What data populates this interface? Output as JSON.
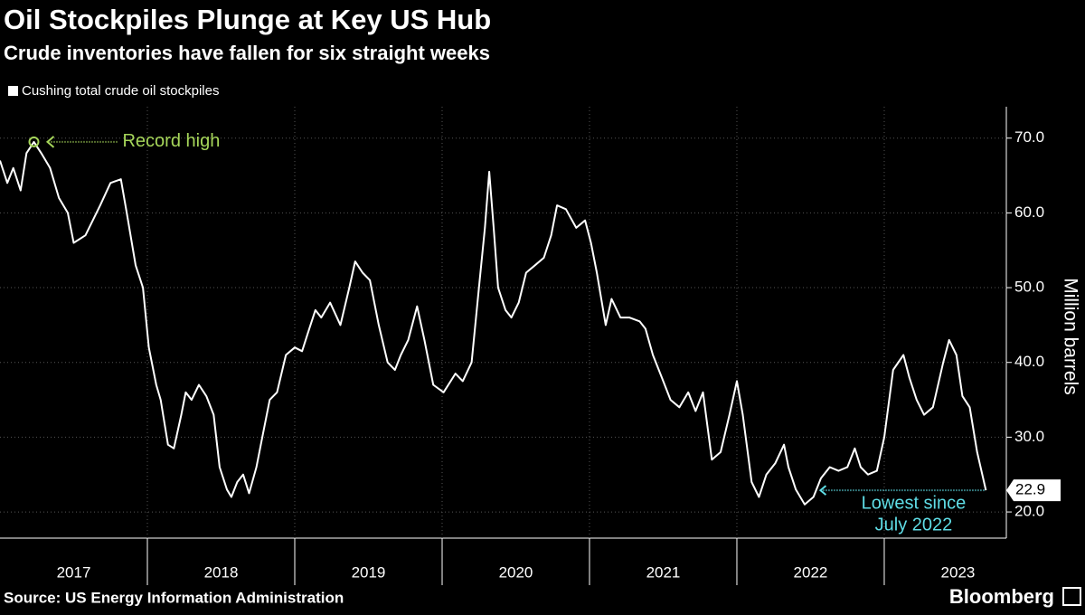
{
  "chart_data": {
    "type": "line",
    "title": "Oil Stockpiles Plunge at Key US Hub",
    "subtitle": "Crude inventories have fallen for six straight weeks",
    "y_label": "Million barrels",
    "source": "Source: US Energy Information Administration",
    "brand": "Bloomberg",
    "x": [
      2017.0,
      2017.05,
      2017.09,
      2017.14,
      2017.18,
      2017.23,
      2017.28,
      2017.34,
      2017.4,
      2017.46,
      2017.5,
      2017.58,
      2017.68,
      2017.75,
      2017.82,
      2017.86,
      2017.92,
      2017.97,
      2018.01,
      2018.06,
      2018.09,
      2018.14,
      2018.18,
      2018.23,
      2018.26,
      2018.3,
      2018.35,
      2018.4,
      2018.45,
      2018.49,
      2018.54,
      2018.57,
      2018.61,
      2018.65,
      2018.69,
      2018.74,
      2018.78,
      2018.83,
      2018.88,
      2018.94,
      2019.0,
      2019.05,
      2019.09,
      2019.14,
      2019.18,
      2019.24,
      2019.31,
      2019.37,
      2019.41,
      2019.46,
      2019.51,
      2019.57,
      2019.63,
      2019.68,
      2019.72,
      2019.77,
      2019.83,
      2019.88,
      2019.94,
      2020.01,
      2020.09,
      2020.14,
      2020.2,
      2020.25,
      2020.29,
      2020.32,
      2020.35,
      2020.38,
      2020.43,
      2020.47,
      2020.52,
      2020.57,
      2020.63,
      2020.69,
      2020.74,
      2020.78,
      2020.84,
      2020.91,
      2020.97,
      2021.01,
      2021.05,
      2021.11,
      2021.15,
      2021.21,
      2021.27,
      2021.34,
      2021.38,
      2021.43,
      2021.49,
      2021.55,
      2021.61,
      2021.67,
      2021.72,
      2021.77,
      2021.83,
      2021.89,
      2021.95,
      2022.0,
      2022.04,
      2022.1,
      2022.15,
      2022.2,
      2022.26,
      2022.32,
      2022.35,
      2022.4,
      2022.46,
      2022.52,
      2022.57,
      2022.63,
      2022.69,
      2022.75,
      2022.8,
      2022.84,
      2022.89,
      2022.95,
      2023.0,
      2023.06,
      2023.13,
      2023.17,
      2023.22,
      2023.27,
      2023.33,
      2023.4,
      2023.44,
      2023.49,
      2023.53,
      2023.58,
      2023.63,
      2023.69
    ],
    "series": [
      {
        "name": "Cushing total crude oil stockpiles",
        "color": "#ffffff",
        "values": [
          67,
          64,
          66,
          63,
          68,
          69.5,
          68,
          66,
          62,
          60,
          56,
          57,
          61,
          64,
          64.5,
          60,
          53,
          50,
          42,
          37,
          35,
          29,
          28.5,
          33,
          36,
          35,
          37,
          35.5,
          33,
          26,
          23,
          22,
          24,
          25,
          22.5,
          26,
          30,
          35,
          36,
          41,
          42,
          41.5,
          44,
          47,
          46,
          48,
          45,
          50,
          53.5,
          52,
          51,
          45,
          40,
          39,
          41,
          43,
          47.5,
          43,
          37,
          36,
          38.5,
          37.5,
          40,
          50,
          58,
          65.5,
          58,
          50,
          47,
          46,
          48,
          52,
          53,
          54,
          57,
          61,
          60.5,
          58,
          59,
          56,
          52,
          45,
          48.5,
          46,
          46,
          45.5,
          44.5,
          41,
          38,
          35,
          34,
          36,
          33.5,
          36,
          27,
          28,
          33,
          37.5,
          33,
          24,
          22,
          25,
          26.5,
          29,
          26,
          23,
          21,
          22,
          24.5,
          26,
          25.5,
          26,
          28.5,
          26,
          25,
          25.5,
          30,
          39,
          41,
          38,
          35,
          33,
          34,
          40,
          43,
          41,
          35.5,
          34,
          28,
          22.9
        ]
      }
    ],
    "xlim": [
      2017,
      2023.81
    ],
    "xticks": [
      {
        "value": 2017.5,
        "label": "2017"
      },
      {
        "value": 2018.5,
        "label": "2018"
      },
      {
        "value": 2019.5,
        "label": "2019"
      },
      {
        "value": 2020.5,
        "label": "2020"
      },
      {
        "value": 2021.5,
        "label": "2021"
      },
      {
        "value": 2022.5,
        "label": "2022"
      },
      {
        "value": 2023.5,
        "label": "2023"
      }
    ],
    "ylim": [
      16.5,
      74.2
    ],
    "yticks": [
      {
        "value": 20,
        "label": "20.0"
      },
      {
        "value": 30,
        "label": "30.0"
      },
      {
        "value": 40,
        "label": "40.0"
      },
      {
        "value": 50,
        "label": "50.0"
      },
      {
        "value": 60,
        "label": "60.0"
      },
      {
        "value": 70,
        "label": "70.0"
      }
    ],
    "grid": true,
    "annotations": [
      {
        "text": [
          "Record high"
        ],
        "x": 2017.23,
        "y": 69.5,
        "color": "#a6d65a",
        "side": "right"
      },
      {
        "text": [
          "Lowest since",
          "July 2022"
        ],
        "x": 2023.69,
        "y": 22.9,
        "color": "#5fdde6",
        "side": "left"
      }
    ]
  }
}
